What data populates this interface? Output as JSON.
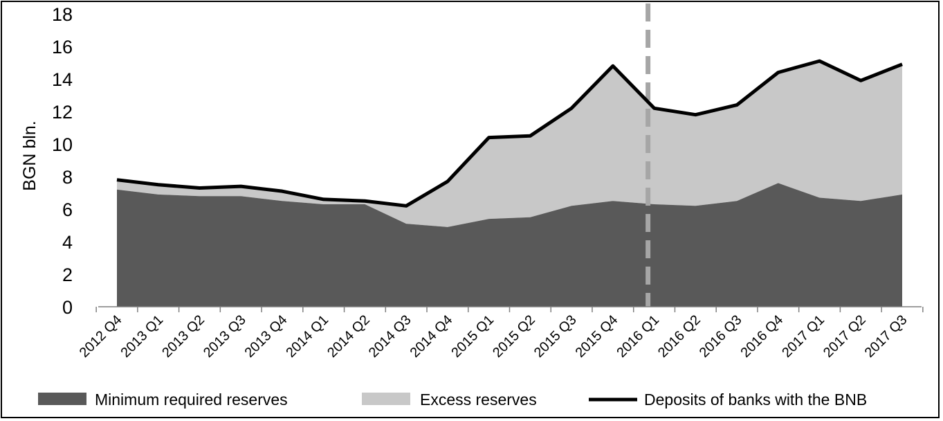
{
  "chart_data": {
    "type": "area",
    "categories": [
      "2012 Q4",
      "2013 Q1",
      "2013 Q2",
      "2013 Q3",
      "2013 Q4",
      "2014 Q1",
      "2014 Q2",
      "2014 Q3",
      "2014 Q4",
      "2015 Q1",
      "2015 Q2",
      "2015 Q3",
      "2015 Q4",
      "2016 Q1",
      "2016 Q2",
      "2016 Q3",
      "2016 Q4",
      "2017 Q1",
      "2017 Q2",
      "2017 Q3"
    ],
    "series": [
      {
        "name": "Minimum required reserves",
        "kind": "stacked-area",
        "color": "#595959",
        "values": [
          7.2,
          6.9,
          6.8,
          6.8,
          6.5,
          6.3,
          6.3,
          5.1,
          4.9,
          5.4,
          5.5,
          6.2,
          6.5,
          6.3,
          6.2,
          6.5,
          7.6,
          6.7,
          6.5,
          6.9
        ]
      },
      {
        "name": "Excess reserves",
        "kind": "stacked-area",
        "color": "#c8c8c8",
        "values": [
          0.6,
          0.6,
          0.5,
          0.6,
          0.6,
          0.3,
          0.2,
          1.1,
          2.8,
          5.0,
          5.0,
          6.0,
          8.3,
          5.9,
          5.6,
          5.9,
          6.8,
          8.4,
          7.4,
          8.0
        ]
      },
      {
        "name": "Deposits of banks with the BNB",
        "kind": "line",
        "color": "#000000",
        "values": [
          7.8,
          7.5,
          7.3,
          7.4,
          7.1,
          6.6,
          6.5,
          6.2,
          7.7,
          10.4,
          10.5,
          12.2,
          14.8,
          12.2,
          11.8,
          12.4,
          14.4,
          15.1,
          13.9,
          14.9
        ]
      }
    ],
    "ylabel": "BGN bln.",
    "xlabel": "",
    "ylim": [
      0,
      18
    ],
    "yticks": [
      0,
      2,
      4,
      6,
      8,
      10,
      12,
      14,
      16,
      18
    ],
    "ytick_labels": [
      "0",
      "2",
      "4",
      "6",
      "8",
      "10",
      "12",
      "14",
      "16",
      "18"
    ],
    "marker_line": {
      "position": "2015 Q4",
      "style": "dashed",
      "color": "#a6a6a6"
    },
    "grid": false,
    "legend": "bottom"
  }
}
